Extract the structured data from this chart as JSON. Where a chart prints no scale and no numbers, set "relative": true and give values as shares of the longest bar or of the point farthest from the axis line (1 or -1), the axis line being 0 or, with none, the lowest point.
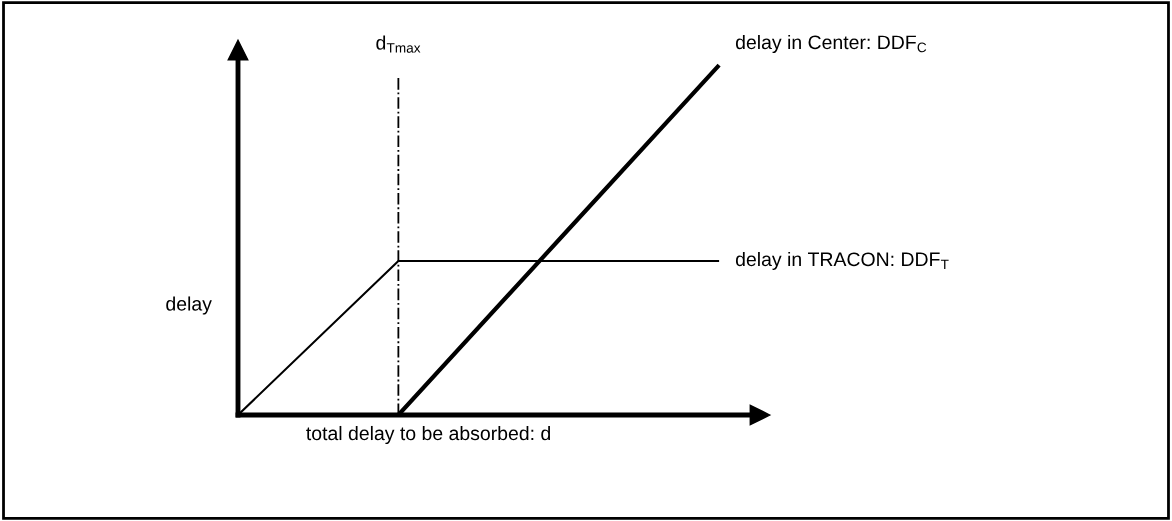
{
  "chart_data": {
    "type": "line",
    "relative": true,
    "xlabel": "total delay to be absorbed: d",
    "ylabel": "delay",
    "categories": [
      null,
      null,
      null,
      null
    ],
    "series": [
      {
        "name": "delay in Center: DDF$_{C}$",
        "color": "#000000",
        "values": [
          null,
          0,
          0.5,
          1
        ]
      },
      {
        "name": "delay in TRACON: DDF$_{T}$",
        "color": "#000000",
        "values": [
          0,
          0.44,
          0.44,
          0.44
        ]
      }
    ],
    "annotations": [
      "d$_{Tmax}$"
    ],
    "legend": false,
    "marker": "none",
    "line_style": "solid"
  }
}
